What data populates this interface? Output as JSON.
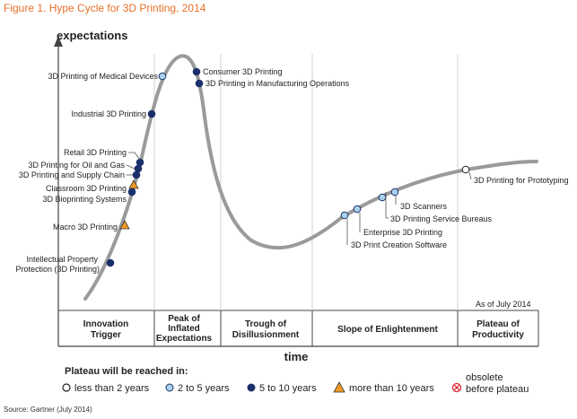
{
  "figure_title": "Figure 1. Hype Cycle for 3D Printing, 2014",
  "source": "Source: Gartner (July 2014)",
  "colors": {
    "title": "#e8702a",
    "curve": "#9a9a9a",
    "less_than_2": "#ffffff",
    "two_to_five": "#a9d3ec",
    "five_to_ten": "#1b2f6b",
    "more_than_ten": "#f29a25",
    "obsolete": "#d9262d"
  },
  "chart_data": {
    "type": "hype-cycle",
    "y_axis_label": "expectations",
    "x_axis_label": "time",
    "as_of": "As of July 2014",
    "phases": [
      "Innovation Trigger",
      "Peak of Inflated Expectations",
      "Trough of Disillusionment",
      "Slope of Enlightenment",
      "Plateau of Productivity"
    ],
    "technologies": [
      {
        "name": "3D Printing of Medical Devices",
        "phase": "Peak of Inflated Expectations",
        "plateau": "2 to 5 years"
      },
      {
        "name": "Consumer 3D Printing",
        "phase": "Peak of Inflated Expectations",
        "plateau": "5 to 10 years"
      },
      {
        "name": "3D Printing in Manufacturing Operations",
        "phase": "Peak of Inflated Expectations",
        "plateau": "5 to 10 years"
      },
      {
        "name": "Industrial 3D Printing",
        "phase": "Innovation Trigger",
        "plateau": "5 to 10 years"
      },
      {
        "name": "Retail 3D Printing",
        "phase": "Innovation Trigger",
        "plateau": "5 to 10 years"
      },
      {
        "name": "3D Printing for Oil and Gas",
        "phase": "Innovation Trigger",
        "plateau": "5 to 10 years"
      },
      {
        "name": "3D Printing and Supply Chain",
        "phase": "Innovation Trigger",
        "plateau": "5 to 10 years"
      },
      {
        "name": "Classroom 3D Printing",
        "phase": "Innovation Trigger",
        "plateau": "more than 10 years"
      },
      {
        "name": "3D Bioprinting Systems",
        "phase": "Innovation Trigger",
        "plateau": "5 to 10 years"
      },
      {
        "name": "Macro 3D Printing",
        "phase": "Innovation Trigger",
        "plateau": "more than 10 years"
      },
      {
        "name": "Intellectual Property Protection (3D Printing)",
        "phase": "Innovation Trigger",
        "plateau": "5 to 10 years"
      },
      {
        "name": "3D Printing for Prototyping",
        "phase": "Slope of Enlightenment",
        "plateau": "less than 2 years"
      },
      {
        "name": "3D Scanners",
        "phase": "Slope of Enlightenment",
        "plateau": "2 to 5 years"
      },
      {
        "name": "3D Printing Service Bureaus",
        "phase": "Slope of Enlightenment",
        "plateau": "2 to 5 years"
      },
      {
        "name": "Enterprise 3D Printing",
        "phase": "Slope of Enlightenment",
        "plateau": "2 to 5 years"
      },
      {
        "name": "3D Print Creation Software",
        "phase": "Slope of Enlightenment",
        "plateau": "2 to 5 years"
      }
    ],
    "legend": {
      "title": "Plateau will be reached in:",
      "items": [
        {
          "label": "less than 2 years",
          "marker": "circle-white"
        },
        {
          "label": "2 to 5 years",
          "marker": "circle-light-blue"
        },
        {
          "label": "5 to 10 years",
          "marker": "circle-dark-blue"
        },
        {
          "label": "more than 10 years",
          "marker": "triangle-orange"
        },
        {
          "label": "obsolete before plateau",
          "marker": "cross-circle-red"
        }
      ]
    }
  }
}
